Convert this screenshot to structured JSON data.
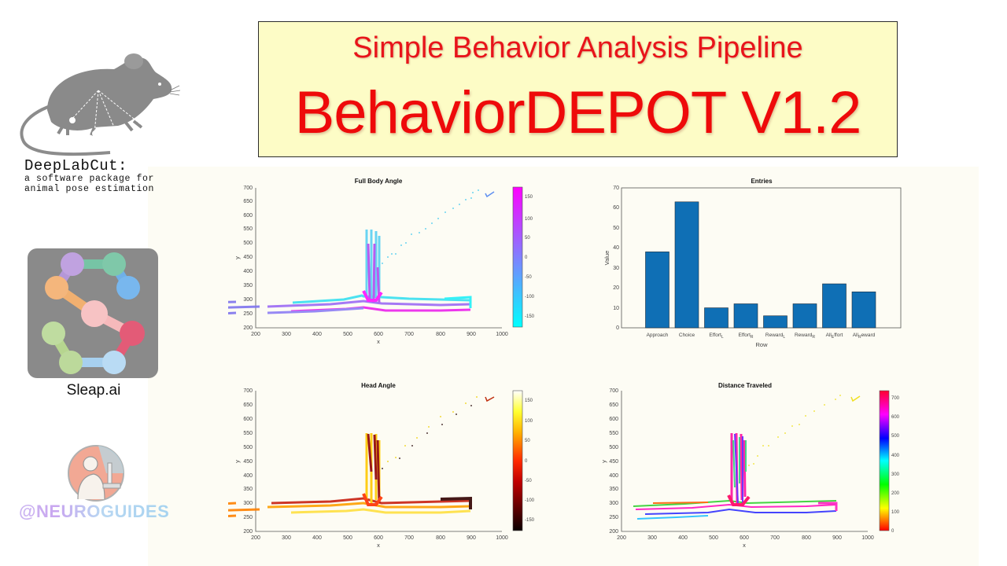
{
  "header": {
    "subtitle": "Simple Behavior Analysis Pipeline",
    "title": "BehaviorDEPOT V1.2",
    "colors": {
      "title_red": "#ee0a0a",
      "box_bg": "#fdfcc6"
    }
  },
  "sidebar": {
    "deeplabcut": {
      "name": "DeepLabCut:",
      "desc_line1": "a software package for",
      "desc_line2": "animal pose estimation",
      "icon": "mouse-icon"
    },
    "sleap": {
      "label": "Sleap.ai",
      "icon": "sleap-logo-icon"
    },
    "neuroguides": {
      "label": "@NEUROGUIDES",
      "icon": "scientist-microscope-icon"
    }
  },
  "chart_data": [
    {
      "type": "scatter",
      "title": "Full Body Angle",
      "xlabel": "x",
      "ylabel": "y",
      "xlim": [
        200,
        1000
      ],
      "ylim": [
        200,
        700
      ],
      "xticks": [
        200,
        300,
        400,
        500,
        600,
        700,
        800,
        900,
        1000
      ],
      "yticks": [
        200,
        250,
        300,
        350,
        400,
        450,
        500,
        550,
        600,
        650,
        700
      ],
      "colorbar": {
        "colormap": "cool",
        "ticks": [
          150,
          100,
          50,
          0,
          -50,
          -100,
          -150
        ],
        "range": [
          -180,
          180
        ]
      },
      "description": "T-maze trajectory: horizontal arm y≈240-310 across x≈240-900, vertical stem x≈545-590 up to y≈555, sparse diagonal points to (960,680)",
      "grid": false
    },
    {
      "type": "bar",
      "title": "Entries",
      "xlabel": "Row",
      "ylabel": "Value",
      "categories": [
        "Approach",
        "Choice",
        "Effort_L",
        "Effort_R",
        "Reward_L",
        "Reward_R",
        "All_Effort",
        "All_Reward"
      ],
      "category_display": [
        {
          "main": "Approach",
          "sub": ""
        },
        {
          "main": "Choice",
          "sub": ""
        },
        {
          "main": "Effort",
          "sub": "L"
        },
        {
          "main": "Effort",
          "sub": "R"
        },
        {
          "main": "Reward",
          "sub": "L"
        },
        {
          "main": "Reward",
          "sub": "R"
        },
        {
          "main": "All",
          "sub": "E",
          "tail": "ffort"
        },
        {
          "main": "All",
          "sub": "R",
          "tail": "eward"
        }
      ],
      "values": [
        38,
        63,
        10,
        12,
        6,
        12,
        22,
        18
      ],
      "ylim": [
        0,
        70
      ],
      "yticks": [
        0,
        10,
        20,
        30,
        40,
        50,
        60,
        70
      ],
      "bar_color": "#0f6fb5",
      "grid": false
    },
    {
      "type": "scatter",
      "title": "Head Angle",
      "xlabel": "x",
      "ylabel": "y",
      "xlim": [
        200,
        1000
      ],
      "ylim": [
        200,
        700
      ],
      "xticks": [
        200,
        300,
        400,
        500,
        600,
        700,
        800,
        900,
        1000
      ],
      "yticks": [
        200,
        250,
        300,
        350,
        400,
        450,
        500,
        550,
        600,
        650,
        700
      ],
      "colorbar": {
        "colormap": "hot",
        "ticks": [
          150,
          100,
          50,
          0,
          -50,
          -100,
          -150
        ],
        "range": [
          -180,
          180
        ]
      },
      "grid": false
    },
    {
      "type": "scatter",
      "title": "Distance Traveled",
      "xlabel": "x",
      "ylabel": "y",
      "xlim": [
        200,
        1000
      ],
      "ylim": [
        200,
        700
      ],
      "xticks": [
        200,
        300,
        400,
        500,
        600,
        700,
        800,
        900,
        1000
      ],
      "yticks": [
        200,
        250,
        300,
        350,
        400,
        450,
        500,
        550,
        600,
        650,
        700
      ],
      "colorbar": {
        "colormap": "hsv",
        "ticks": [
          700,
          600,
          500,
          400,
          300,
          200,
          100,
          0
        ],
        "range": [
          0,
          740
        ]
      },
      "grid": false
    }
  ]
}
